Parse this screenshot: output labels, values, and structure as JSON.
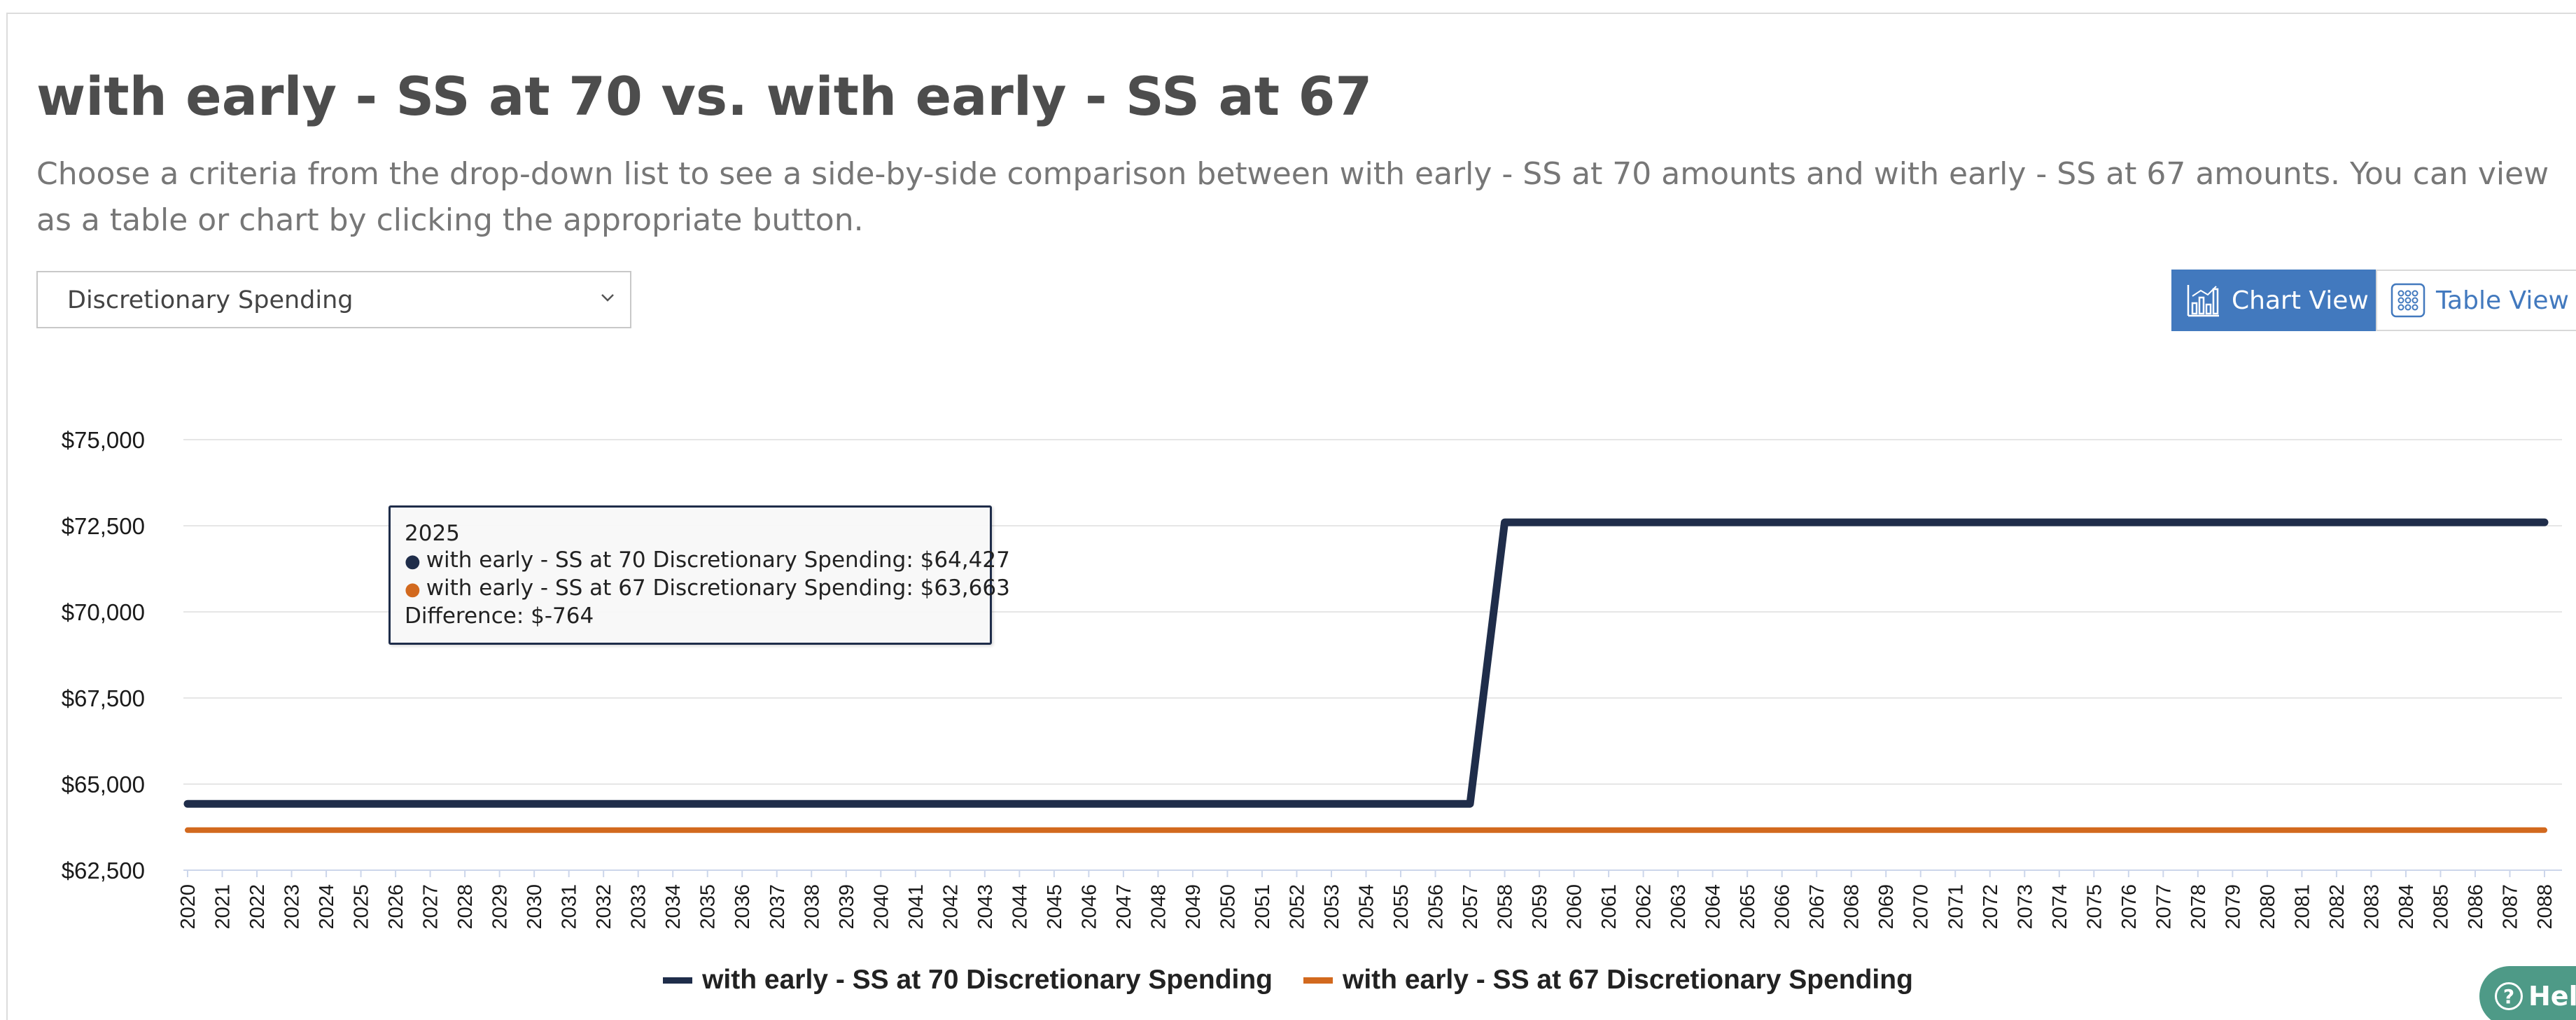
{
  "header": {
    "title": "with early - SS at 70 vs. with early - SS at 67",
    "description": "Choose a criteria from the drop-down list to see a side-by-side comparison between with early - SS at 70 amounts and with early - SS at 67 amounts. You can view as a table or chart by clicking the appropriate button."
  },
  "criteria_select": {
    "selected": "Discretionary Spending",
    "icon": "chevron-down-icon"
  },
  "view_toggle": {
    "chart_label": "Chart View",
    "chart_icon": "bar-chart-icon",
    "table_label": "Table View",
    "table_icon": "grid-icon",
    "active": "chart"
  },
  "tooltip": {
    "year": "2025",
    "line1": "with early - SS at 70 Discretionary Spending: $64,427",
    "line2": "with early - SS at 67 Discretionary Spending: $63,663",
    "line3": "Difference: $-764"
  },
  "help": {
    "label": "Help",
    "icon": "question-icon"
  },
  "chart_data": {
    "type": "line",
    "title": "",
    "xlabel": "",
    "ylabel": "",
    "x_start": 2020,
    "x_end": 2088,
    "ylim": [
      62500,
      75000
    ],
    "yticks": [
      62500,
      65000,
      67500,
      70000,
      72500,
      75000
    ],
    "ytick_labels": [
      "$62,500",
      "$65,000",
      "$67,500",
      "$70,000",
      "$72,500",
      "$75,000"
    ],
    "grid": true,
    "legend_position": "bottom",
    "series": [
      {
        "name": "with early - SS at 70 Discretionary Spending",
        "color": "#1f2d4a",
        "segments": [
          {
            "from": 2020,
            "to": 2057,
            "value": 64427
          },
          {
            "from": 2058,
            "to": 2088,
            "value": 72600
          }
        ]
      },
      {
        "name": "with early - SS at 67 Discretionary Spending",
        "color": "#d2691e",
        "segments": [
          {
            "from": 2020,
            "to": 2088,
            "value": 63663
          }
        ]
      }
    ]
  }
}
